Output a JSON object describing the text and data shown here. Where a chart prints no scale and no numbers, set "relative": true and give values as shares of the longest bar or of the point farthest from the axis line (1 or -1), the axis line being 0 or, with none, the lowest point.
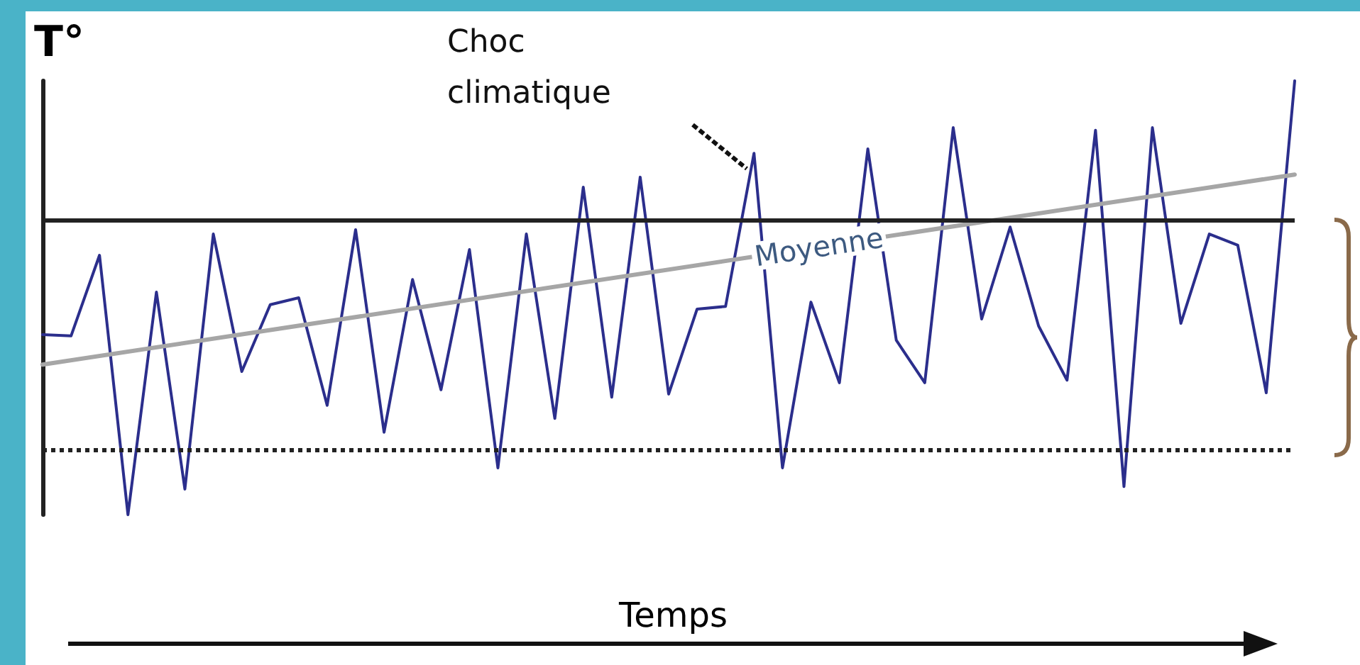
{
  "chart_data": {
    "type": "line",
    "relative": true,
    "ylabel": "T°",
    "xlabel": "Temps",
    "grid": false,
    "legend": false,
    "marker": "none",
    "categories": [
      null,
      null,
      null,
      null,
      null,
      null,
      null,
      null,
      null,
      null,
      null,
      null,
      null,
      null,
      null,
      null,
      null,
      null,
      null,
      null,
      null,
      null,
      null,
      null,
      null,
      null,
      null,
      null,
      null,
      null,
      null,
      null,
      null,
      null,
      null,
      null,
      null,
      null,
      null,
      null,
      null,
      null,
      null,
      null,
      null
    ],
    "series": [
      {
        "color": "#2b2e8c",
        "values": [
          0.415,
          0.412,
          0.598,
          0,
          0.513,
          0.059,
          0.647,
          0.33,
          0.484,
          0.5,
          0.252,
          0.657,
          0.19,
          0.542,
          0.288,
          0.611,
          0.108,
          0.647,
          0.222,
          0.755,
          0.271,
          0.778,
          0.278,
          0.474,
          0.48,
          0.833,
          0.108,
          0.49,
          0.304,
          0.843,
          0.402,
          0.304,
          0.892,
          0.451,
          0.663,
          0.435,
          0.31,
          0.886,
          0.065,
          0.892,
          0.441,
          0.647,
          0.621,
          0.281,
          1
        ]
      },
      {
        "name": "Moyenne",
        "color": "#a6a6a6",
        "values": [
          0.346,
          null,
          null,
          null,
          null,
          null,
          null,
          null,
          null,
          null,
          null,
          null,
          null,
          null,
          null,
          null,
          null,
          null,
          null,
          null,
          null,
          null,
          null,
          null,
          null,
          null,
          null,
          null,
          null,
          null,
          null,
          null,
          null,
          null,
          null,
          null,
          null,
          null,
          null,
          null,
          null,
          null,
          null,
          null,
          0.784
        ]
      }
    ],
    "ref_lines": [
      {
        "axis": "y",
        "value": 0.68,
        "color": "#222222",
        "line_style": "solid"
      },
      {
        "axis": "y",
        "value": 0.147,
        "color": "#222222",
        "line_style": "dotted"
      }
    ],
    "annotations": [
      "Choc climatique"
    ]
  }
}
